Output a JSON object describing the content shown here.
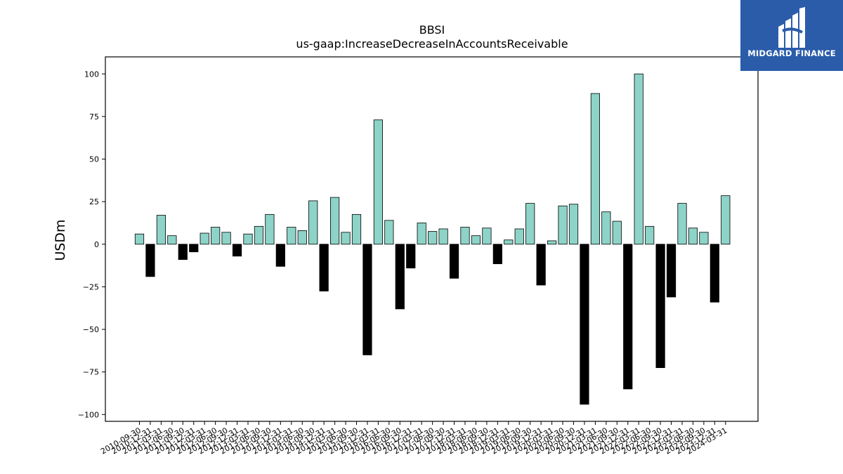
{
  "brand": {
    "name": "MIDGARD FINANCE"
  },
  "chart_data": {
    "type": "bar",
    "title": "BBSI",
    "subtitle": "us-gaap:IncreaseDecreaseInAccountsReceivable",
    "ylabel": "USDm",
    "xlabel": "",
    "ylim": [
      -104,
      110
    ],
    "yticks": [
      100,
      75,
      50,
      25,
      0,
      -25,
      -50,
      -75,
      -100
    ],
    "ytick_labels": [
      "100",
      "75",
      "50",
      "25",
      "0",
      "−25",
      "−50",
      "−75",
      "−100"
    ],
    "grid": false,
    "legend": "none",
    "colors": {
      "positive": "#8dd3c7",
      "negative": "#000000",
      "outline": "#000000"
    },
    "categories": [
      "2010-09-30",
      "2010-12-31",
      "2011-03-31",
      "2011-06-30",
      "2011-09-30",
      "2011-12-31",
      "2012-03-31",
      "2012-06-30",
      "2012-09-30",
      "2012-12-31",
      "2013-03-31",
      "2013-06-30",
      "2013-09-30",
      "2013-12-31",
      "2014-03-31",
      "2014-06-30",
      "2014-09-30",
      "2014-12-31",
      "2015-03-31",
      "2015-06-30",
      "2015-09-30",
      "2015-12-31",
      "2016-03-31",
      "2016-06-30",
      "2016-09-30",
      "2016-12-31",
      "2017-03-31",
      "2017-06-30",
      "2017-09-30",
      "2017-12-31",
      "2018-03-31",
      "2018-06-30",
      "2018-09-30",
      "2018-12-31",
      "2019-03-31",
      "2019-06-30",
      "2019-09-30",
      "2019-12-31",
      "2020-03-31",
      "2020-06-30",
      "2020-09-30",
      "2020-12-31",
      "2021-03-31",
      "2021-06-30",
      "2021-09-30",
      "2021-12-31",
      "2022-03-31",
      "2022-06-30",
      "2022-09-30",
      "2022-12-31",
      "2023-03-31",
      "2023-06-30",
      "2023-09-30",
      "2023-12-31",
      "2024-03-31"
    ],
    "values": [
      6,
      -19,
      17,
      5,
      -9,
      -4.5,
      6.5,
      10,
      7,
      -7,
      6,
      10.5,
      17.5,
      -13,
      10,
      8,
      25.5,
      -27.5,
      27.5,
      7,
      17.5,
      -65,
      73,
      14,
      -38,
      -14,
      12.5,
      7.5,
      9,
      -20,
      10,
      5,
      9.5,
      -11.5,
      2.5,
      9,
      24,
      -24,
      2,
      22.5,
      23.5,
      -94,
      88.5,
      19,
      13.5,
      -85,
      100,
      10.5,
      -72.5,
      -31,
      24,
      9.5,
      7,
      -34,
      28.5
    ]
  }
}
